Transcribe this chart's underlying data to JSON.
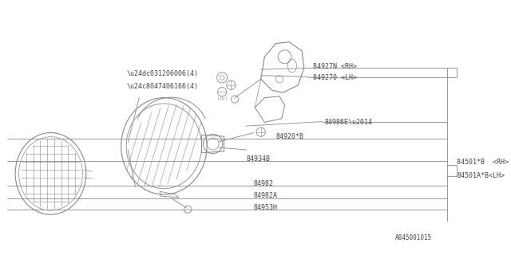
{
  "bg_color": "#ffffff",
  "line_color": "#888888",
  "text_color": "#444444",
  "diagram_id": "A845001015",
  "labels": {
    "031206006": "\\u24dc031206006(4)",
    "047406166": "\\u24c8047406166(4)",
    "84927N": "84927N <RH>",
    "849270": "849270 <LH>",
    "84986E": "84986E\\u2014",
    "84920B": "84920*B",
    "84934B": "84934B",
    "84501B": "84501*B  <RH>",
    "84501AB": "84501A*B<LH>",
    "84982": "84982",
    "84982A": "84982A",
    "84953H": "84953H"
  }
}
